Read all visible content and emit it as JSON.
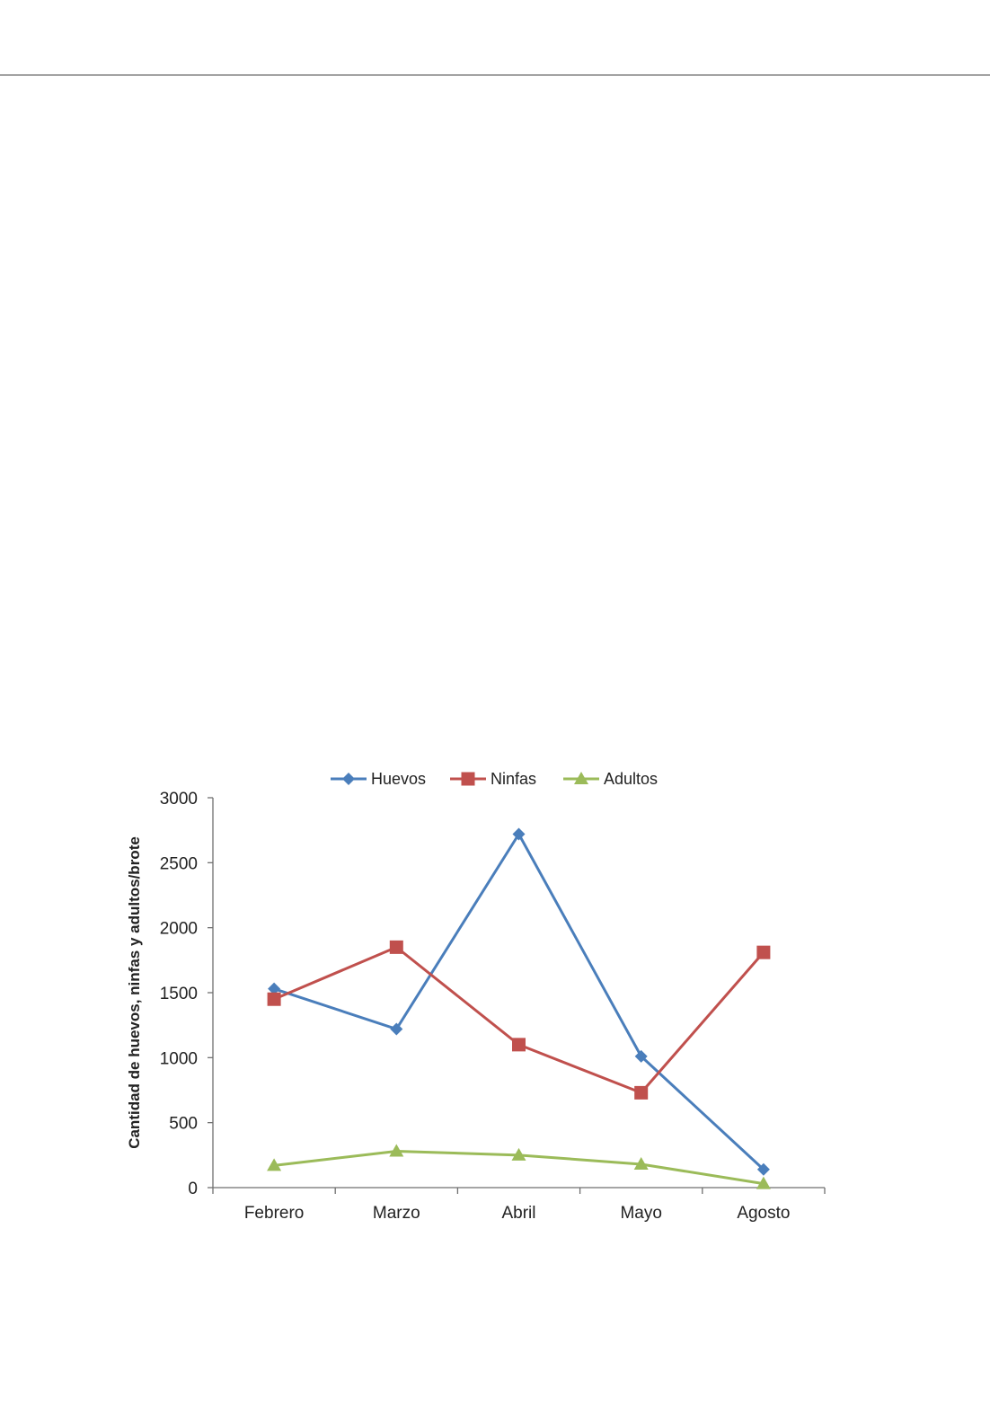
{
  "chart_data": {
    "type": "line",
    "categories": [
      "Febrero",
      "Marzo",
      "Abril",
      "Mayo",
      "Agosto"
    ],
    "series": [
      {
        "name": "Huevos",
        "values": [
          1530,
          1220,
          2720,
          1010,
          140
        ],
        "color": "#4a7ebb",
        "marker": "diamond"
      },
      {
        "name": "Ninfas",
        "values": [
          1450,
          1850,
          1100,
          730,
          1810
        ],
        "color": "#c0504d",
        "marker": "square"
      },
      {
        "name": "Adultos",
        "values": [
          170,
          280,
          250,
          180,
          30
        ],
        "color": "#9bbb59",
        "marker": "triangle"
      }
    ],
    "ylabel": "Cantidad de huevos, ninfas y adultos/brote",
    "xlabel": "",
    "ylim": [
      0,
      3000
    ],
    "yticks": [
      0,
      500,
      1000,
      1500,
      2000,
      2500,
      3000
    ],
    "legend_position": "top",
    "grid": false
  }
}
